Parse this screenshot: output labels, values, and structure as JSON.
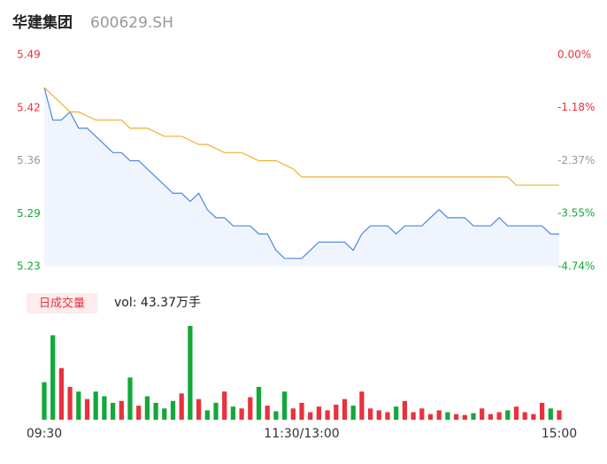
{
  "chart_data": {
    "type": "intraday",
    "title": "华建集团",
    "subtitle": "600629.SH",
    "volume_badge": "日成交量",
    "volume_label": "vol: 43.37万手",
    "x": [
      0,
      4,
      8,
      12,
      16,
      20,
      24,
      28,
      32,
      36,
      40,
      44,
      48,
      52,
      56,
      60,
      64,
      68,
      72,
      76,
      80,
      84,
      88,
      92,
      96,
      100,
      104,
      108,
      112,
      116,
      120,
      124,
      128,
      132,
      136,
      140,
      144,
      148,
      152,
      156,
      160,
      164,
      168,
      172,
      176,
      180,
      184,
      188,
      192,
      196,
      200,
      204,
      208,
      212,
      216,
      220,
      224,
      228,
      232,
      236,
      240
    ],
    "xlim": [
      0,
      240
    ],
    "xticks": [
      {
        "value": 0,
        "label": "09:30"
      },
      {
        "value": 120,
        "label": "11:30/13:00"
      },
      {
        "value": 240,
        "label": "15:00"
      }
    ],
    "ylim": [
      5.23,
      5.49
    ],
    "yticks": [
      5.49,
      {
        "value": 5.425,
        "label": "5.42"
      },
      5.36,
      {
        "value": 5.295,
        "label": "5.29"
      },
      5.23
    ],
    "y2lim": [
      -4.74,
      0
    ],
    "y2ticks": [
      {
        "value": 0,
        "label": "0.00%"
      },
      {
        "value": -1.18,
        "label": "-1.18%"
      },
      {
        "value": -2.37,
        "label": "-2.37%"
      },
      {
        "value": -3.55,
        "label": "-3.55%"
      },
      {
        "value": -4.74,
        "label": "-4.74%"
      }
    ],
    "tick_colors": {
      "up": "#e8323c",
      "flat": "#999999",
      "down": "#14a83b"
    },
    "series": [
      {
        "name": "price",
        "color": "#4a86e8",
        "values": [
          5.45,
          5.41,
          5.41,
          5.42,
          5.4,
          5.4,
          5.39,
          5.38,
          5.37,
          5.37,
          5.36,
          5.36,
          5.35,
          5.34,
          5.33,
          5.32,
          5.32,
          5.31,
          5.32,
          5.3,
          5.29,
          5.29,
          5.28,
          5.28,
          5.28,
          5.27,
          5.27,
          5.25,
          5.24,
          5.24,
          5.24,
          5.25,
          5.26,
          5.26,
          5.26,
          5.26,
          5.25,
          5.27,
          5.28,
          5.28,
          5.28,
          5.27,
          5.28,
          5.28,
          5.28,
          5.29,
          5.3,
          5.29,
          5.29,
          5.29,
          5.28,
          5.28,
          5.28,
          5.29,
          5.28,
          5.28,
          5.28,
          5.28,
          5.28,
          5.27,
          5.27
        ]
      },
      {
        "name": "average",
        "color": "#f0b030",
        "values": [
          5.45,
          5.44,
          5.43,
          5.42,
          5.42,
          5.415,
          5.41,
          5.41,
          5.41,
          5.41,
          5.4,
          5.4,
          5.4,
          5.395,
          5.39,
          5.39,
          5.39,
          5.385,
          5.38,
          5.38,
          5.375,
          5.37,
          5.37,
          5.37,
          5.365,
          5.36,
          5.36,
          5.36,
          5.355,
          5.35,
          5.34,
          5.34,
          5.34,
          5.34,
          5.34,
          5.34,
          5.34,
          5.34,
          5.34,
          5.34,
          5.34,
          5.34,
          5.34,
          5.34,
          5.34,
          5.34,
          5.34,
          5.34,
          5.34,
          5.34,
          5.34,
          5.34,
          5.34,
          5.34,
          5.34,
          5.33,
          5.33,
          5.33,
          5.33,
          5.33,
          5.33
        ]
      },
      {
        "name": "volume",
        "up_color": "#e8323c",
        "down_color": "#14a83b",
        "values": [
          40,
          90,
          55,
          35,
          30,
          22,
          30,
          25,
          18,
          20,
          45,
          15,
          25,
          18,
          12,
          20,
          28,
          100,
          22,
          10,
          18,
          30,
          14,
          12,
          24,
          35,
          15,
          9,
          30,
          12,
          18,
          8,
          14,
          10,
          16,
          22,
          15,
          30,
          12,
          10,
          8,
          14,
          20,
          8,
          12,
          6,
          10,
          8,
          6,
          5,
          7,
          12,
          6,
          8,
          10,
          14,
          8,
          6,
          18,
          12,
          10
        ]
      }
    ]
  }
}
